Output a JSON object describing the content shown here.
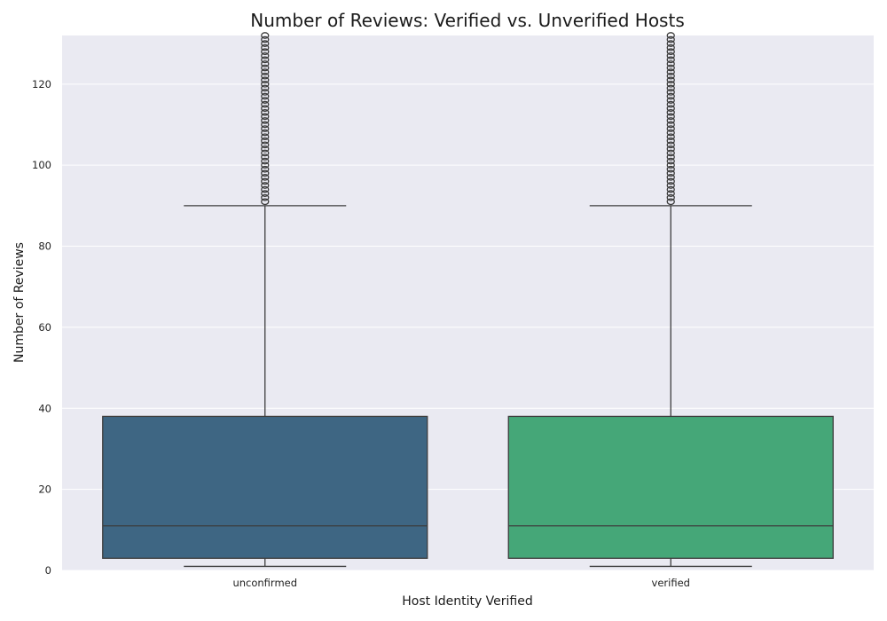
{
  "chart_data": {
    "type": "box",
    "title": "Number of Reviews: Verified vs. Unverified Hosts",
    "xlabel": "Host Identity Verified",
    "ylabel": "Number of Reviews",
    "ylim": [
      0,
      132
    ],
    "yticks": [
      0,
      20,
      40,
      60,
      80,
      100,
      120
    ],
    "grid": true,
    "background": "#eaeaf2",
    "categories": [
      "unconfirmed",
      "verified"
    ],
    "boxes": [
      {
        "category": "unconfirmed",
        "min": 1,
        "q1": 3,
        "median": 11,
        "q3": 38,
        "max": 90,
        "outliers_range": [
          91,
          132
        ],
        "color": "#3e6683"
      },
      {
        "category": "verified",
        "min": 1,
        "q1": 3,
        "median": 11,
        "q3": 38,
        "max": 90,
        "outliers_range": [
          91,
          132
        ],
        "color": "#45a778"
      }
    ]
  }
}
